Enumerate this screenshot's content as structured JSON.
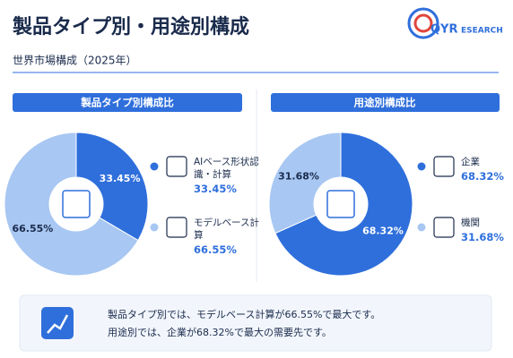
{
  "header": {
    "title": "製品タイプ別・用途別構成",
    "subtitle": "世界市場構成（2025年）",
    "logo_mark": "QYR",
    "logo_text": "ESEARCH"
  },
  "chart_data": [
    {
      "type": "pie",
      "title": "製品タイプ別構成比",
      "categories": [
        "AIベース形状認識・計算",
        "モデルベース計算"
      ],
      "values": [
        33.45,
        66.55
      ],
      "value_labels": [
        "33.45%",
        "66.55%"
      ],
      "colors": [
        "#2f6fdc",
        "#a8c7f2"
      ]
    },
    {
      "type": "pie",
      "title": "用途別構成比",
      "categories": [
        "企業",
        "機関"
      ],
      "values": [
        68.32,
        31.68
      ],
      "value_labels": [
        "68.32%",
        "31.68%"
      ],
      "colors": [
        "#2f6fdc",
        "#a8c7f2"
      ]
    }
  ],
  "footer": {
    "lines": [
      "製品タイプ別では、モデルベース計算が66.55%で最大です。",
      "用途別では、企業が68.32%で最大の需要先です。"
    ]
  }
}
